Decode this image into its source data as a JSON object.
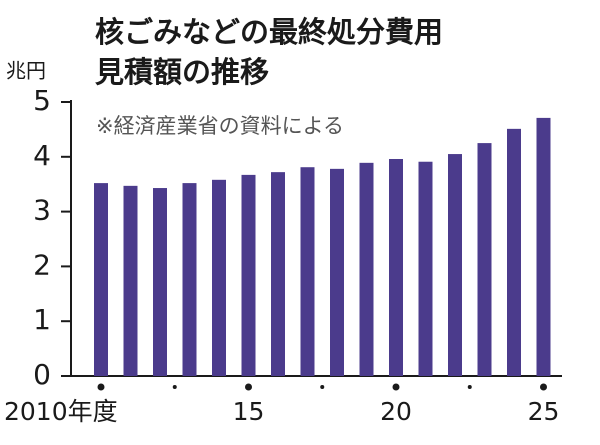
{
  "chart_data": {
    "type": "bar",
    "title": [
      "核ごみなどの最終処分費用",
      "見積額の推移"
    ],
    "note": "※経済産業省の資料による",
    "y_label": "兆円",
    "categories": [
      "2010年度",
      null,
      null,
      null,
      null,
      "15",
      null,
      null,
      null,
      null,
      "20",
      null,
      null,
      null,
      null,
      "25"
    ],
    "values": [
      3.52,
      3.47,
      3.43,
      3.52,
      3.58,
      3.67,
      3.72,
      3.81,
      3.78,
      3.89,
      3.96,
      3.91,
      4.05,
      4.25,
      4.51,
      4.71
    ],
    "color": "#4b3b8c",
    "ylim": [
      0,
      5
    ],
    "yticks": [
      0,
      1,
      2,
      3,
      4,
      5
    ],
    "grid": false
  }
}
